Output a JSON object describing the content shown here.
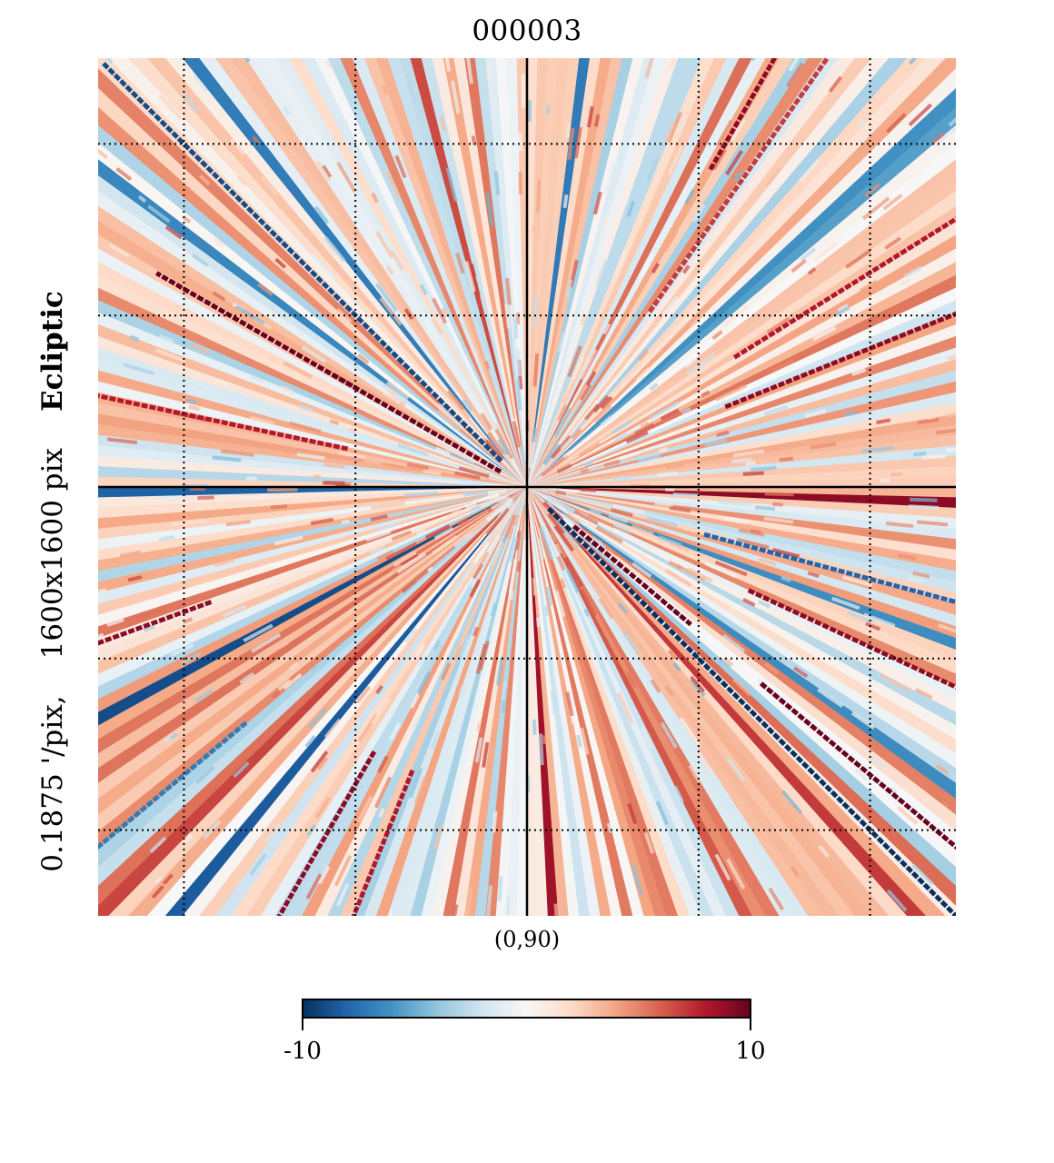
{
  "chart_data": {
    "type": "heatmap",
    "title": "000003",
    "projection": "gnomonic",
    "center_label": "(0,90)",
    "coord_system": "Ecliptic",
    "resolution_text": "0.1875 '/pix,",
    "size_text": "1600x1600 pix",
    "colormap": "RdBu_r",
    "colorbar": {
      "min": -10,
      "max": 10,
      "min_label": "-10",
      "max_label": "10",
      "placement": "bottom"
    },
    "graticule": "dotted",
    "grid_columns": 5,
    "grid_rows": 5,
    "axes_lines": "solid",
    "pattern": "radial stripes radiating from center with strong diagonal streaks",
    "streaks": [
      {
        "angle_deg": 135,
        "value": -9,
        "from": 0.06,
        "to": 0.98
      },
      {
        "angle_deg": 150,
        "value": 10,
        "from": 0.05,
        "to": 0.7
      },
      {
        "angle_deg": 160,
        "value": 9,
        "from": 0.85,
        "to": 1.0
      },
      {
        "angle_deg": 168,
        "value": 8,
        "from": 0.3,
        "to": 0.95
      },
      {
        "angle_deg": 22,
        "value": 9,
        "from": 0.35,
        "to": 1.0
      },
      {
        "angle_deg": 32,
        "value": 8,
        "from": 0.4,
        "to": 1.0
      },
      {
        "angle_deg": 55,
        "value": 7,
        "from": 0.35,
        "to": 1.0
      },
      {
        "angle_deg": 60,
        "value": 9,
        "from": 0.6,
        "to": 1.0
      },
      {
        "angle_deg": 180,
        "value": 7,
        "from": 0.85,
        "to": 1.0
      },
      {
        "angle_deg": -15,
        "value": -8,
        "from": 0.3,
        "to": 0.9
      },
      {
        "angle_deg": -25,
        "value": 9,
        "from": 0.4,
        "to": 1.0
      },
      {
        "angle_deg": -40,
        "value": 10,
        "from": 0.1,
        "to": 0.35
      },
      {
        "angle_deg": -45,
        "value": -10,
        "from": 0.05,
        "to": 1.0
      },
      {
        "angle_deg": -40,
        "value": 10,
        "from": 0.5,
        "to": 1.0
      },
      {
        "angle_deg": -120,
        "value": 9,
        "from": 0.5,
        "to": 1.0
      },
      {
        "angle_deg": -112,
        "value": 8,
        "from": 0.5,
        "to": 1.0
      },
      {
        "angle_deg": -140,
        "value": -7,
        "from": 0.6,
        "to": 1.0
      },
      {
        "angle_deg": -160,
        "value": 9,
        "from": 0.55,
        "to": 0.8
      },
      {
        "angle_deg": 175,
        "value": 10,
        "from": 0.85,
        "to": 1.0
      }
    ]
  }
}
